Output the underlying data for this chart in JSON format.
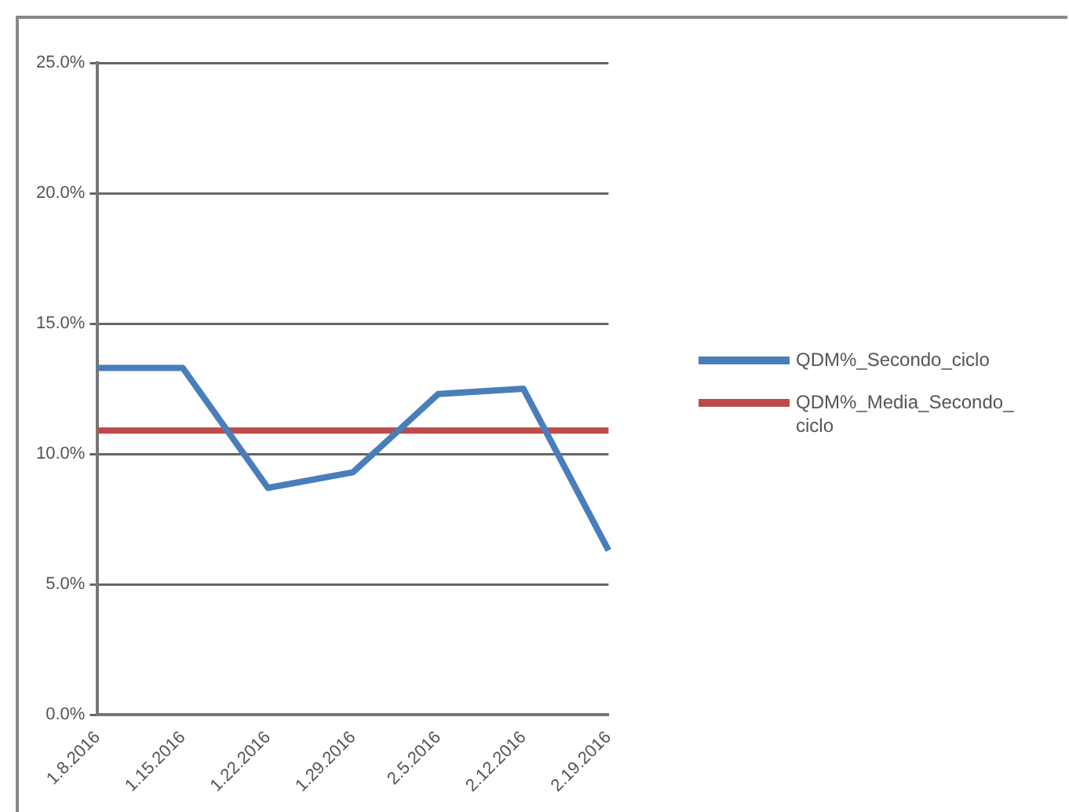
{
  "chart_data": {
    "type": "line",
    "categories": [
      "1.8.2016",
      "1.15.2016",
      "1.22.2016",
      "1.29.2016",
      "2.5.2016",
      "2.12.2016",
      "2.19.2016"
    ],
    "series": [
      {
        "name": "QDM%_Secondo_ciclo",
        "color": "#4a7ebb",
        "values": [
          13.3,
          13.3,
          8.7,
          9.3,
          12.3,
          12.5,
          6.3
        ]
      },
      {
        "name": "QDM%_Media_Secondo_ciclo",
        "color": "#be4b48",
        "values": [
          10.9,
          10.9,
          10.9,
          10.9,
          10.9,
          10.9,
          10.9
        ]
      }
    ],
    "ylim": [
      0,
      25
    ],
    "yticks": [
      {
        "value": 0,
        "label": "0.0%"
      },
      {
        "value": 5,
        "label": "5.0%"
      },
      {
        "value": 10,
        "label": "10.0%"
      },
      {
        "value": 15,
        "label": "15.0%"
      },
      {
        "value": 20,
        "label": "20.0%"
      },
      {
        "value": 25,
        "label": "25.0%"
      }
    ],
    "grid": "y",
    "legend": "right",
    "marker": "none",
    "line_style": "solid"
  }
}
